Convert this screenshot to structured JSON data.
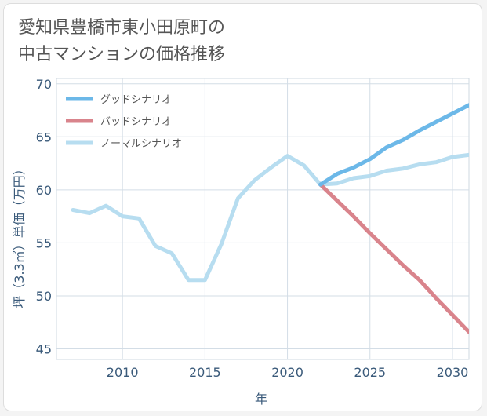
{
  "chart_data": {
    "type": "line",
    "title": "愛知県豊橋市東小田原町の中古マンションの価格推移",
    "title_lines": [
      "愛知県豊橋市東小田原町の",
      "中古マンションの価格推移"
    ],
    "xlabel": "年",
    "ylabel": "坪（3.3㎡）単価（万円）",
    "xlim": [
      2006,
      2031
    ],
    "ylim": [
      44,
      70.5
    ],
    "xticks": [
      2010,
      2015,
      2020,
      2025,
      2030
    ],
    "yticks": [
      45,
      50,
      55,
      60,
      65,
      70
    ],
    "grid": true,
    "legend_position": "top-left",
    "series": [
      {
        "name": "グッドシナリオ",
        "color": "#6cb8e8",
        "x": [
          2022,
          2023,
          2024,
          2025,
          2026,
          2027,
          2028,
          2029,
          2030,
          2031
        ],
        "y": [
          60.5,
          61.5,
          62.1,
          62.9,
          64.0,
          64.7,
          65.6,
          66.4,
          67.2,
          68.0
        ]
      },
      {
        "name": "バッドシナリオ",
        "color": "#d9848c",
        "x": [
          2022,
          2023,
          2024,
          2025,
          2026,
          2027,
          2028,
          2029,
          2030,
          2031
        ],
        "y": [
          60.5,
          59.0,
          57.5,
          55.9,
          54.4,
          52.9,
          51.5,
          49.8,
          48.2,
          46.6
        ]
      },
      {
        "name": "ノーマルシナリオ",
        "color": "#b7ddf0",
        "x": [
          2007,
          2008,
          2009,
          2010,
          2011,
          2012,
          2013,
          2014,
          2015,
          2016,
          2017,
          2018,
          2019,
          2020,
          2021,
          2022,
          2023,
          2024,
          2025,
          2026,
          2027,
          2028,
          2029,
          2030,
          2031
        ],
        "y": [
          58.1,
          57.8,
          58.5,
          57.5,
          57.3,
          54.7,
          54.0,
          51.5,
          51.5,
          54.9,
          59.2,
          60.9,
          62.1,
          63.2,
          62.3,
          60.5,
          60.6,
          61.1,
          61.3,
          61.8,
          62.0,
          62.4,
          62.6,
          63.1,
          63.3
        ]
      }
    ]
  }
}
